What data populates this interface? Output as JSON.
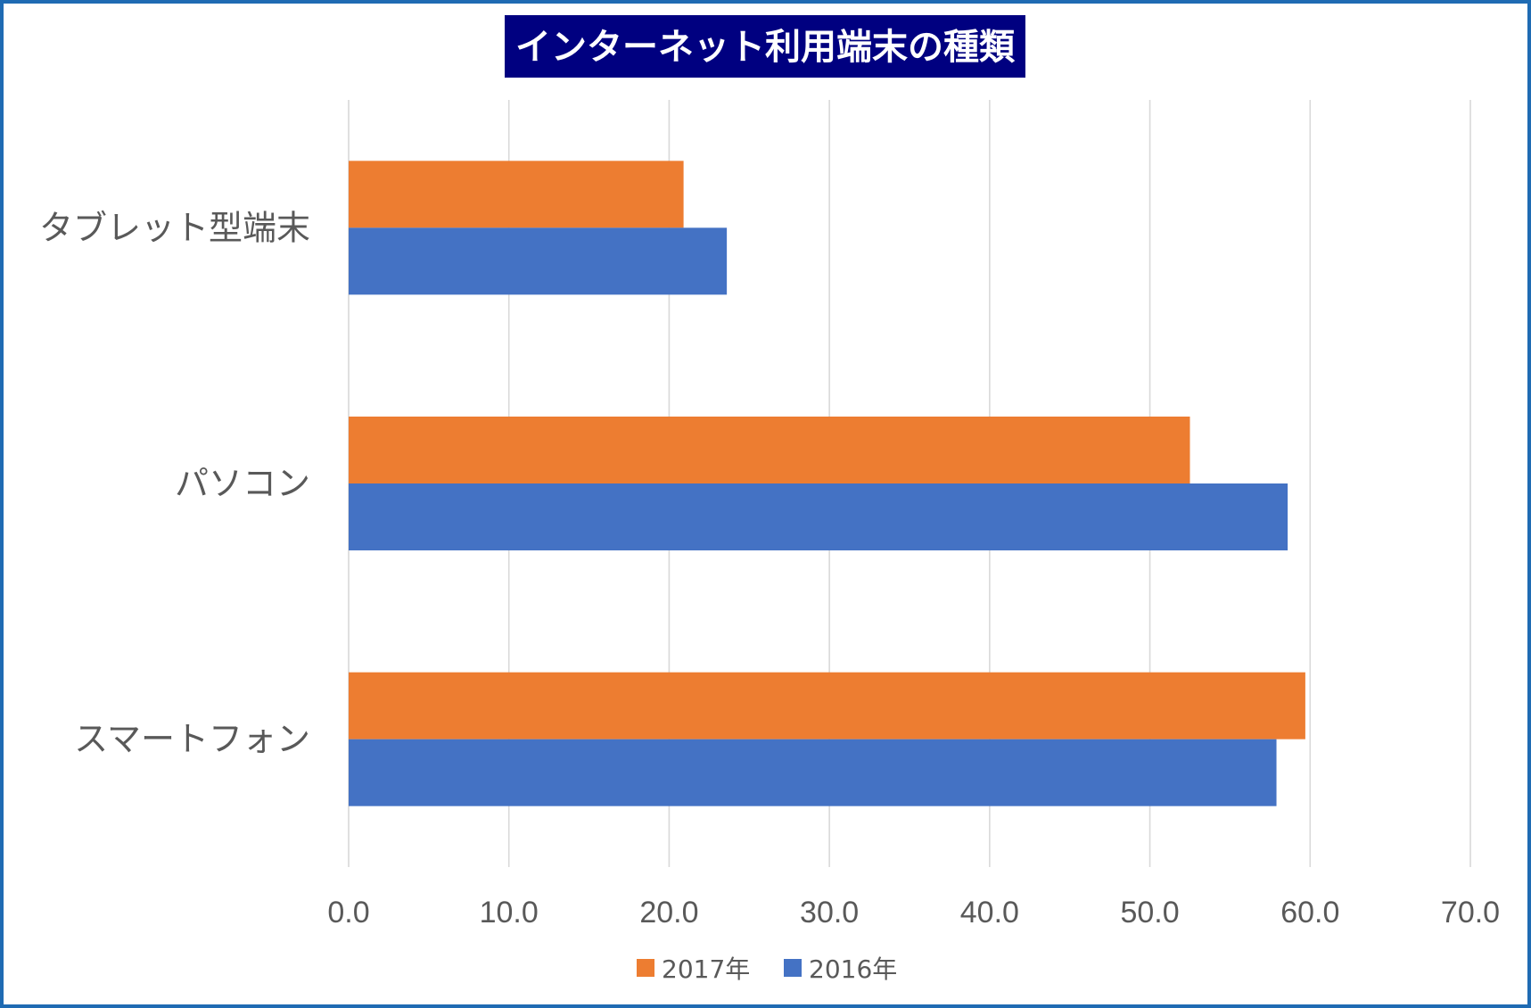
{
  "chart_data": {
    "type": "bar",
    "orientation": "horizontal",
    "title": "インターネット利用端末の種類",
    "categories": [
      "タブレット型端末",
      "パソコン",
      "スマートフォン"
    ],
    "series": [
      {
        "name": "2017年",
        "color": "#ed7d31",
        "values": [
          20.9,
          52.5,
          59.7
        ]
      },
      {
        "name": "2016年",
        "color": "#4472c4",
        "values": [
          23.6,
          58.6,
          57.9
        ]
      }
    ],
    "xlim": [
      0,
      70
    ],
    "xticks": [
      "0.0",
      "10.0",
      "20.0",
      "30.0",
      "40.0",
      "50.0",
      "60.0",
      "70.0"
    ],
    "xlabel": "",
    "ylabel": "",
    "grid": true,
    "legend_position": "bottom"
  }
}
